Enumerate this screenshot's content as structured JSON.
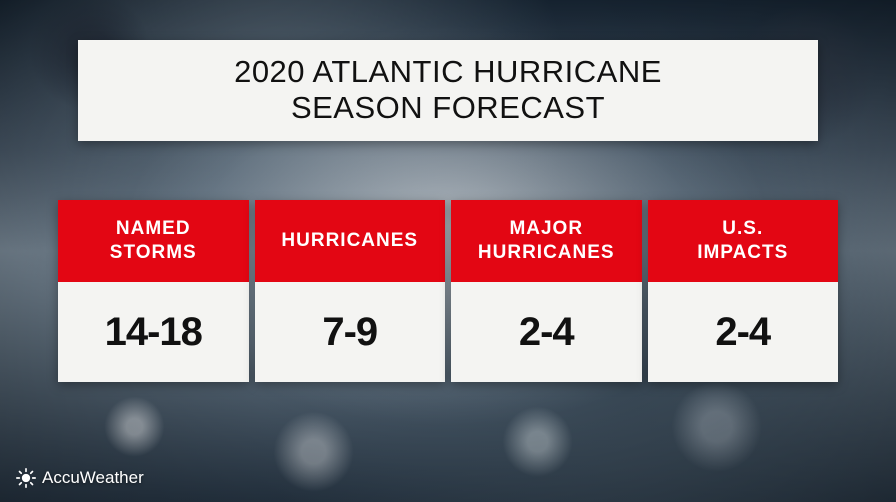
{
  "title": {
    "line1": "2020 ATLANTIC HURRICANE",
    "line2": "SEASON FORECAST",
    "bg": "#f4f4f2",
    "text_color": "#111111",
    "font_size": 31
  },
  "forecast": {
    "header_bg": "#e30613",
    "header_text_color": "#ffffff",
    "header_font_size": 19,
    "value_bg": "#f4f4f2",
    "value_text_color": "#111111",
    "value_font_size": 40,
    "columns": [
      {
        "label": "NAMED\nSTORMS",
        "value": "14-18"
      },
      {
        "label": "HURRICANES",
        "value": "7-9"
      },
      {
        "label": "MAJOR\nHURRICANES",
        "value": "2-4"
      },
      {
        "label": "U.S.\nIMPACTS",
        "value": "2-4"
      }
    ]
  },
  "brand": {
    "name": "AccuWeather",
    "icon": "sun-icon",
    "text_color": "#ffffff"
  },
  "background": {
    "description": "satellite-hurricane-photo",
    "dominant_colors": [
      "#1a2a3a",
      "#4a5a6a",
      "#7a8a98",
      "#d8dde2"
    ]
  }
}
